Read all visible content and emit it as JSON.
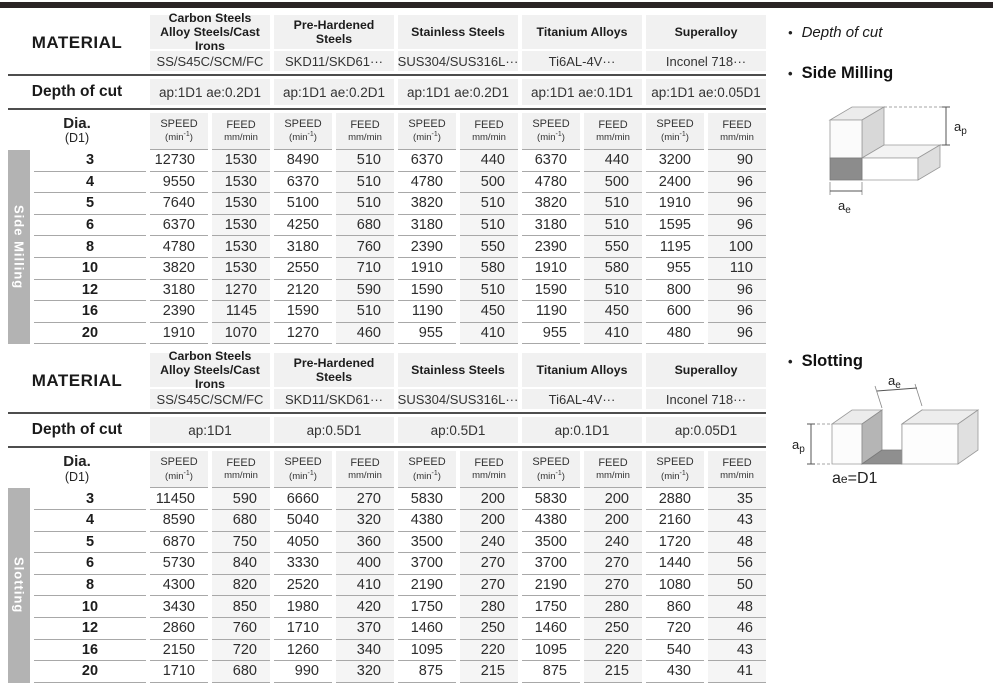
{
  "colors": {
    "top_bar": "#2a2425",
    "section_tab_gray": "#b3b3b3",
    "header_cell_gray": "#f1f1f1",
    "feed_cell_gray": "#f5f5f5"
  },
  "panel": {
    "bullet": "•",
    "depth_of_cut_label": "Depth of cut",
    "side_milling_label": "Side Milling",
    "slotting_label": "Slotting",
    "dim_a": "a",
    "dim_p": "p",
    "dim_e": "e",
    "slot_caption_eq": "=D1"
  },
  "tables": [
    {
      "section_label": "Side Milling",
      "material_label": "MATERIAL",
      "depth_label": "Depth of cut",
      "dia_label": "Dia.",
      "dia_sublabel": "(D1)",
      "speed_label": "SPEED",
      "speed_unit_pre": "(min",
      "speed_unit_sup": "-1",
      "speed_unit_post": ")",
      "feed_label": "FEED",
      "feed_unit": "mm/min",
      "groups": [
        {
          "name": "Carbon Steels",
          "name2": "Alloy Steels/Cast Irons",
          "example": "SS/S45C/SCM/FC",
          "depth": "ap:1D1 ae:0.2D1"
        },
        {
          "name": "Pre-Hardened Steels",
          "example": "SKD11/SKD61···",
          "depth": "ap:1D1 ae:0.2D1"
        },
        {
          "name": "Stainless Steels",
          "example": "SUS304/SUS316L···",
          "depth": "ap:1D1 ae:0.2D1"
        },
        {
          "name": "Titanium Alloys",
          "example": "Ti6AL-4V···",
          "depth": "ap:1D1 ae:0.1D1"
        },
        {
          "name": "Superalloy",
          "example": "Inconel 718···",
          "depth": "ap:1D1 ae:0.05D1"
        }
      ],
      "rows": [
        {
          "dia": "3",
          "values": [
            12730,
            1530,
            8490,
            510,
            6370,
            440,
            6370,
            440,
            3200,
            90
          ]
        },
        {
          "dia": "4",
          "values": [
            9550,
            1530,
            6370,
            510,
            4780,
            500,
            4780,
            500,
            2400,
            96
          ]
        },
        {
          "dia": "5",
          "values": [
            7640,
            1530,
            5100,
            510,
            3820,
            510,
            3820,
            510,
            1910,
            96
          ]
        },
        {
          "dia": "6",
          "values": [
            6370,
            1530,
            4250,
            680,
            3180,
            510,
            3180,
            510,
            1595,
            96
          ]
        },
        {
          "dia": "8",
          "values": [
            4780,
            1530,
            3180,
            760,
            2390,
            550,
            2390,
            550,
            1195,
            100
          ]
        },
        {
          "dia": "10",
          "values": [
            3820,
            1530,
            2550,
            710,
            1910,
            580,
            1910,
            580,
            955,
            110
          ]
        },
        {
          "dia": "12",
          "values": [
            3180,
            1270,
            2120,
            590,
            1590,
            510,
            1590,
            510,
            800,
            96
          ]
        },
        {
          "dia": "16",
          "values": [
            2390,
            1145,
            1590,
            510,
            1190,
            450,
            1190,
            450,
            600,
            96
          ]
        },
        {
          "dia": "20",
          "values": [
            1910,
            1070,
            1270,
            460,
            955,
            410,
            955,
            410,
            480,
            96
          ]
        }
      ]
    },
    {
      "section_label": "Slotting",
      "material_label": "MATERIAL",
      "depth_label": "Depth of cut",
      "dia_label": "Dia.",
      "dia_sublabel": "(D1)",
      "speed_label": "SPEED",
      "speed_unit_pre": "(min",
      "speed_unit_sup": "-1",
      "speed_unit_post": ")",
      "feed_label": "FEED",
      "feed_unit": "mm/min",
      "groups": [
        {
          "name": "Carbon Steels",
          "name2": "Alloy Steels/Cast Irons",
          "example": "SS/S45C/SCM/FC",
          "depth": "ap:1D1"
        },
        {
          "name": "Pre-Hardened Steels",
          "example": "SKD11/SKD61···",
          "depth": "ap:0.5D1"
        },
        {
          "name": "Stainless Steels",
          "example": "SUS304/SUS316L···",
          "depth": "ap:0.5D1"
        },
        {
          "name": "Titanium Alloys",
          "example": "Ti6AL-4V···",
          "depth": "ap:0.1D1"
        },
        {
          "name": "Superalloy",
          "example": "Inconel 718···",
          "depth": "ap:0.05D1"
        }
      ],
      "rows": [
        {
          "dia": "3",
          "values": [
            11450,
            590,
            6660,
            270,
            5830,
            200,
            5830,
            200,
            2880,
            35
          ]
        },
        {
          "dia": "4",
          "values": [
            8590,
            680,
            5040,
            320,
            4380,
            200,
            4380,
            200,
            2160,
            43
          ]
        },
        {
          "dia": "5",
          "values": [
            6870,
            750,
            4050,
            360,
            3500,
            240,
            3500,
            240,
            1720,
            48
          ]
        },
        {
          "dia": "6",
          "values": [
            5730,
            840,
            3330,
            400,
            3700,
            270,
            3700,
            270,
            1440,
            56
          ]
        },
        {
          "dia": "8",
          "values": [
            4300,
            820,
            2520,
            410,
            2190,
            270,
            2190,
            270,
            1080,
            50
          ]
        },
        {
          "dia": "10",
          "values": [
            3430,
            850,
            1980,
            420,
            1750,
            280,
            1750,
            280,
            860,
            48
          ]
        },
        {
          "dia": "12",
          "values": [
            2860,
            760,
            1710,
            370,
            1460,
            250,
            1460,
            250,
            720,
            46
          ]
        },
        {
          "dia": "16",
          "values": [
            2150,
            720,
            1260,
            340,
            1095,
            220,
            1095,
            220,
            540,
            43
          ]
        },
        {
          "dia": "20",
          "values": [
            1710,
            680,
            990,
            320,
            875,
            215,
            875,
            215,
            430,
            41
          ]
        }
      ]
    }
  ]
}
